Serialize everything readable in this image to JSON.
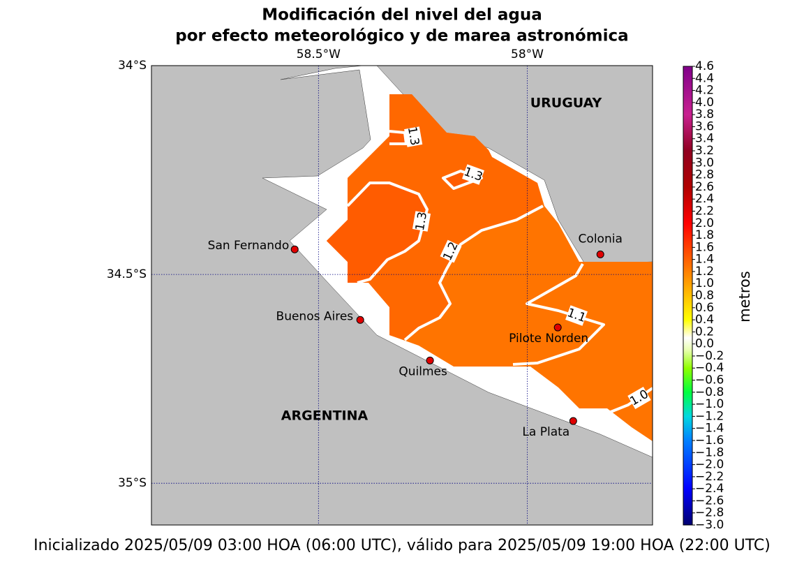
{
  "chart_data": {
    "type": "map",
    "title_lines": [
      "Modificación del nivel del agua",
      "por efecto meteorológico y de marea astronómica"
    ],
    "footer": "Inicializado 2025/05/09 03:00 HOA (06:00 UTC), válido para 2025/05/09 19:00 HOA (22:00 UTC)",
    "xlim": [
      -58.9,
      -57.7
    ],
    "ylim": [
      -35.1,
      -34.0
    ],
    "xticks": [
      {
        "value": -58.5,
        "label": "58.5°W"
      },
      {
        "value": -58.0,
        "label": "58°W"
      }
    ],
    "yticks": [
      {
        "value": -34.0,
        "label": "34°S"
      },
      {
        "value": -34.5,
        "label": "34.5°S"
      },
      {
        "value": -35.0,
        "label": "35°S"
      }
    ],
    "grid": true,
    "countries": [
      "URUGUAY",
      "ARGENTINA"
    ],
    "cities": [
      {
        "name": "San Fernando",
        "lon": -58.557,
        "lat": -34.44
      },
      {
        "name": "Buenos Aires",
        "lon": -58.4,
        "lat": -34.609
      },
      {
        "name": "Quilmes",
        "lon": -58.233,
        "lat": -34.706
      },
      {
        "name": "Pilote Norden",
        "lon": -57.927,
        "lat": -34.627
      },
      {
        "name": "Colonia",
        "lon": -57.825,
        "lat": -34.452
      },
      {
        "name": "La Plata",
        "lon": -57.89,
        "lat": -34.851
      }
    ],
    "city_color": "#e00000",
    "contour_labels": [
      "1.3",
      "1.3",
      "1.3",
      "1.2",
      "1.1",
      "1.0"
    ],
    "colorbar": {
      "label": "metros",
      "lim": [
        -3.0,
        4.6
      ],
      "ticks": [
        {
          "value": -3.0,
          "label": "−3.0"
        },
        {
          "value": -2.8,
          "label": "−2.8"
        },
        {
          "value": -2.6,
          "label": "−2.6"
        },
        {
          "value": -2.4,
          "label": "−2.4"
        },
        {
          "value": -2.2,
          "label": "−2.2"
        },
        {
          "value": -2.0,
          "label": "−2.0"
        },
        {
          "value": -1.8,
          "label": "−1.8"
        },
        {
          "value": -1.6,
          "label": "−1.6"
        },
        {
          "value": -1.4,
          "label": "−1.4"
        },
        {
          "value": -1.2,
          "label": "−1.2"
        },
        {
          "value": -1.0,
          "label": "−1.0"
        },
        {
          "value": -0.8,
          "label": "−0.8"
        },
        {
          "value": -0.6,
          "label": "−0.6"
        },
        {
          "value": -0.4,
          "label": "−0.4"
        },
        {
          "value": -0.2,
          "label": "−0.2"
        },
        {
          "value": 0.0,
          "label": "0.0"
        },
        {
          "value": 0.2,
          "label": "0.2"
        },
        {
          "value": 0.4,
          "label": "0.4"
        },
        {
          "value": 0.6,
          "label": "0.6"
        },
        {
          "value": 0.8,
          "label": "0.8"
        },
        {
          "value": 1.0,
          "label": "1.0"
        },
        {
          "value": 1.2,
          "label": "1.2"
        },
        {
          "value": 1.4,
          "label": "1.4"
        },
        {
          "value": 1.6,
          "label": "1.6"
        },
        {
          "value": 1.8,
          "label": "1.8"
        },
        {
          "value": 2.0,
          "label": "2.0"
        },
        {
          "value": 2.2,
          "label": "2.2"
        },
        {
          "value": 2.4,
          "label": "2.4"
        },
        {
          "value": 2.6,
          "label": "2.6"
        },
        {
          "value": 2.8,
          "label": "2.8"
        },
        {
          "value": 3.0,
          "label": "3.0"
        },
        {
          "value": 3.2,
          "label": "3.2"
        },
        {
          "value": 3.4,
          "label": "3.4"
        },
        {
          "value": 3.6,
          "label": "3.6"
        },
        {
          "value": 3.8,
          "label": "3.8"
        },
        {
          "value": 4.0,
          "label": "4.0"
        },
        {
          "value": 4.2,
          "label": "4.2"
        },
        {
          "value": 4.4,
          "label": "4.4"
        },
        {
          "value": 4.6,
          "label": "4.6"
        }
      ],
      "stops": [
        {
          "value": -3.0,
          "color": "#000070"
        },
        {
          "value": -2.4,
          "color": "#0000ff"
        },
        {
          "value": -1.6,
          "color": "#0080ff"
        },
        {
          "value": -1.2,
          "color": "#00d8e0"
        },
        {
          "value": -0.8,
          "color": "#00ff40"
        },
        {
          "value": -0.4,
          "color": "#90ff00"
        },
        {
          "value": -0.1,
          "color": "#e8ffb0"
        },
        {
          "value": 0.1,
          "color": "#ffffff"
        },
        {
          "value": 0.4,
          "color": "#ffff00"
        },
        {
          "value": 0.8,
          "color": "#ffc000"
        },
        {
          "value": 1.2,
          "color": "#ff8000"
        },
        {
          "value": 1.6,
          "color": "#ff4000"
        },
        {
          "value": 2.0,
          "color": "#ff0000"
        },
        {
          "value": 2.6,
          "color": "#b00000"
        },
        {
          "value": 3.2,
          "color": "#900020"
        },
        {
          "value": 3.8,
          "color": "#c82090"
        },
        {
          "value": 4.6,
          "color": "#80008a"
        }
      ]
    }
  }
}
